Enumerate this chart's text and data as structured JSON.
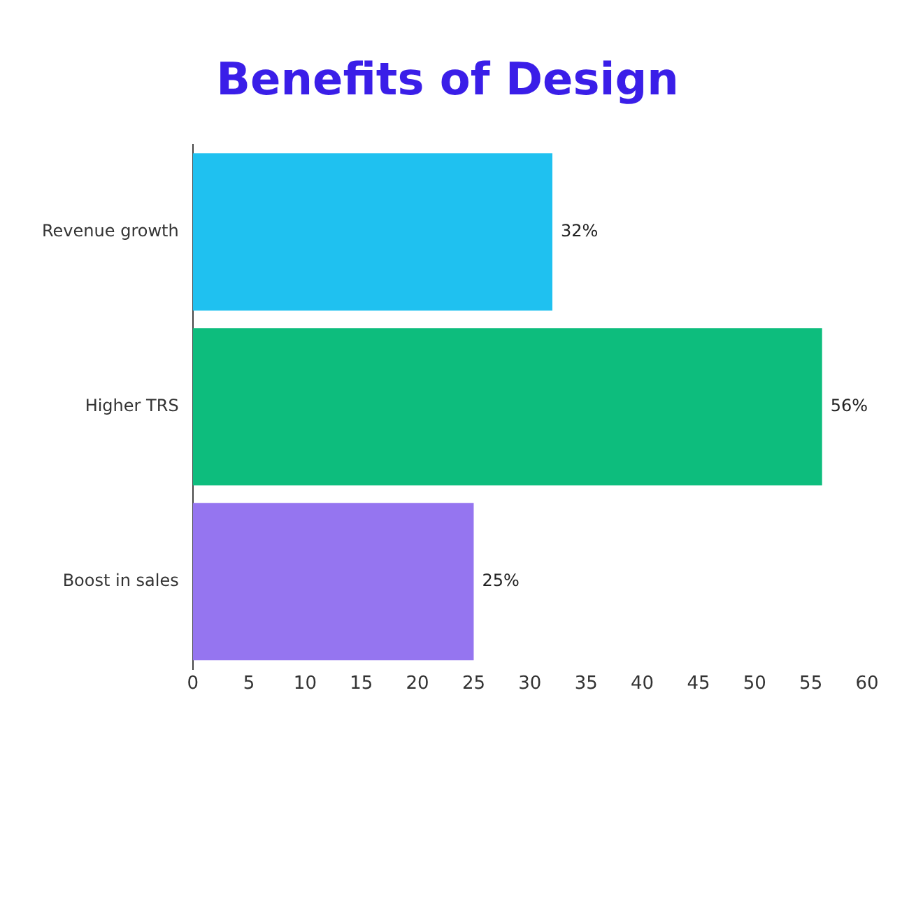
{
  "chart_data": {
    "type": "bar",
    "orientation": "horizontal",
    "title": "Benefits of Design",
    "categories": [
      "Revenue growth",
      "Higher TRS",
      "Boost in sales"
    ],
    "values": [
      32,
      56,
      25
    ],
    "colors": [
      "#1fc1f0",
      "#0dbd7d",
      "#9575f0"
    ],
    "value_labels": [
      "32%",
      "56%",
      "25%"
    ],
    "xlim": [
      0,
      60
    ],
    "xticks": [
      0,
      5,
      10,
      15,
      20,
      25,
      30,
      35,
      40,
      45,
      50,
      55,
      60
    ],
    "grid": false,
    "legend": false
  }
}
